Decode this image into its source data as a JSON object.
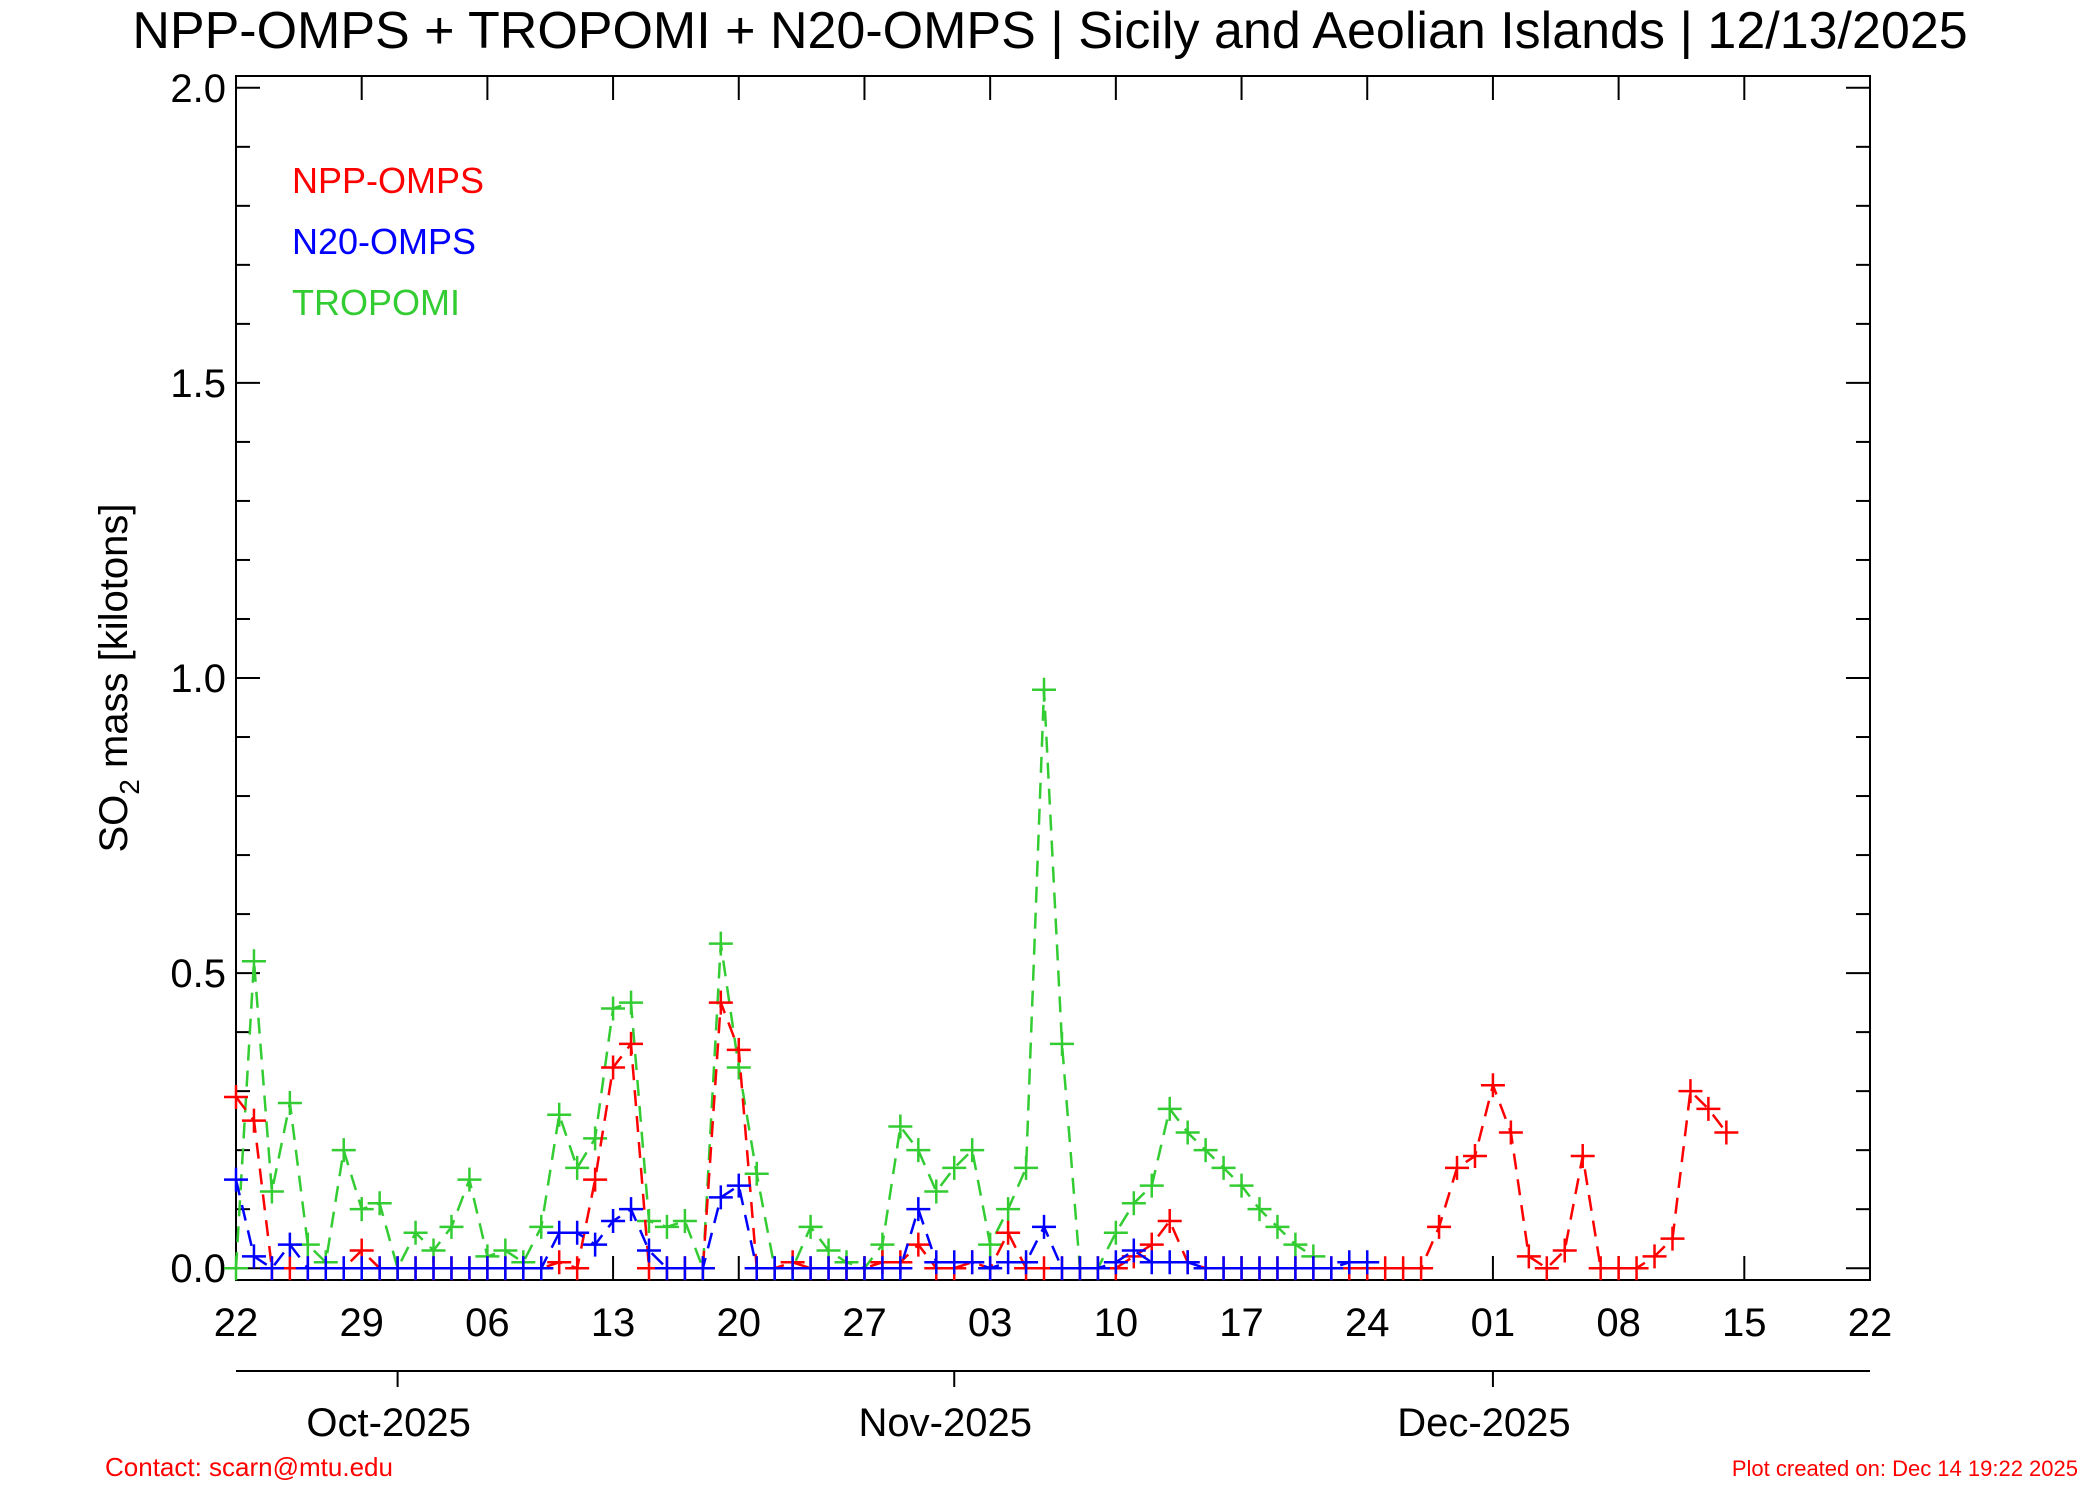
{
  "title": "NPP-OMPS + TROPOMI + N20-OMPS | Sicily and Aeolian Islands | 12/13/2025",
  "footer": {
    "contact": "Contact: scarn@mtu.edu",
    "created": "Plot created on: Dec 14 19:22 2025",
    "color": "#ff0000"
  },
  "chart_data": {
    "type": "line",
    "title": "NPP-OMPS + TROPOMI + N20-OMPS | Sicily and Aeolian Islands | 12/13/2025",
    "xlabel": "",
    "ylabel": "SO2 mass [kilotons]",
    "ylabel_main": "SO",
    "ylabel_sub": "2",
    "ylabel_rest": " mass [kilotons]",
    "x_unit": "days since Sep 22 2025",
    "xlim": [
      0,
      91
    ],
    "ylim": [
      -0.02,
      2.02
    ],
    "grid": false,
    "legend_placement": "top-left",
    "x_ticks": [
      {
        "x": 0,
        "label": "22"
      },
      {
        "x": 7,
        "label": "29"
      },
      {
        "x": 14,
        "label": "06"
      },
      {
        "x": 21,
        "label": "13"
      },
      {
        "x": 28,
        "label": "20"
      },
      {
        "x": 35,
        "label": "27"
      },
      {
        "x": 42,
        "label": "03"
      },
      {
        "x": 49,
        "label": "10"
      },
      {
        "x": 56,
        "label": "17"
      },
      {
        "x": 63,
        "label": "24"
      },
      {
        "x": 70,
        "label": "01"
      },
      {
        "x": 77,
        "label": "08"
      },
      {
        "x": 84,
        "label": "15"
      },
      {
        "x": 91,
        "label": "22"
      }
    ],
    "months": [
      {
        "x": 8.5,
        "label": "Oct-2025"
      },
      {
        "x": 39.5,
        "label": "Nov-2025"
      },
      {
        "x": 69.5,
        "label": "Dec-2025"
      }
    ],
    "y_ticks": [
      {
        "y": 0.0,
        "label": "0.0"
      },
      {
        "y": 0.5,
        "label": "0.5"
      },
      {
        "y": 1.0,
        "label": "1.0"
      },
      {
        "y": 1.5,
        "label": "1.5"
      },
      {
        "y": 2.0,
        "label": "2.0"
      }
    ],
    "series": [
      {
        "name": "NPP-OMPS",
        "color": "#ff0000",
        "x": [
          0,
          1,
          2,
          3,
          4,
          5,
          6,
          7,
          8,
          9,
          10,
          11,
          12,
          13,
          14,
          15,
          16,
          17,
          18,
          19,
          20,
          21,
          22,
          23,
          24,
          25,
          26,
          27,
          28,
          29,
          30,
          31,
          32,
          33,
          34,
          35,
          36,
          37,
          38,
          39,
          40,
          41,
          42,
          43,
          44,
          45,
          46,
          47,
          48,
          49,
          50,
          51,
          52,
          53,
          54,
          55,
          56,
          57,
          58,
          59,
          60,
          61,
          62,
          63,
          64,
          65,
          66,
          67,
          68,
          69,
          70,
          71,
          72,
          73,
          74,
          75,
          76,
          77,
          78,
          79,
          80,
          81,
          82,
          83
        ],
        "y": [
          0.29,
          0.25,
          0.0,
          0.0,
          0.0,
          0.0,
          0.0,
          0.03,
          0.0,
          0.0,
          0.0,
          0.0,
          0.0,
          0.0,
          0.0,
          0.0,
          0.0,
          0.0,
          0.01,
          0.0,
          0.15,
          0.34,
          0.38,
          0.0,
          0.0,
          0.0,
          0.0,
          0.45,
          0.37,
          0.0,
          0.0,
          0.01,
          0.0,
          0.0,
          0.0,
          0.0,
          0.01,
          0.01,
          0.04,
          0.0,
          0.0,
          0.01,
          0.0,
          0.06,
          0.0,
          0.0,
          0.0,
          0.0,
          0.0,
          0.0,
          0.02,
          0.04,
          0.08,
          0.01,
          0.0,
          0.0,
          0.0,
          0.0,
          0.0,
          0.0,
          0.0,
          0.0,
          0.0,
          0.0,
          0.0,
          0.0,
          0.0,
          0.07,
          0.17,
          0.19,
          0.31,
          0.23,
          0.02,
          0.0,
          0.03,
          0.19,
          0.0,
          0.0,
          0.0,
          0.02,
          0.05,
          0.3,
          0.27,
          0.23
        ]
      },
      {
        "name": "N20-OMPS",
        "color": "#0000ff",
        "x": [
          0,
          1,
          2,
          3,
          4,
          5,
          6,
          7,
          8,
          9,
          10,
          11,
          12,
          13,
          14,
          15,
          16,
          17,
          18,
          19,
          20,
          21,
          22,
          23,
          24,
          25,
          26,
          27,
          28,
          29,
          30,
          31,
          32,
          33,
          34,
          35,
          36,
          37,
          38,
          39,
          40,
          41,
          42,
          43,
          44,
          45,
          46,
          47,
          48,
          49,
          50,
          51,
          52,
          53,
          54,
          55,
          56,
          57,
          58,
          59,
          60,
          61,
          62,
          63
        ],
        "y": [
          0.15,
          0.02,
          0.0,
          0.04,
          0.0,
          0.0,
          0.0,
          0.0,
          0.0,
          0.0,
          0.0,
          0.0,
          0.0,
          0.0,
          0.0,
          0.0,
          0.0,
          0.0,
          0.06,
          0.06,
          0.04,
          0.08,
          0.1,
          0.03,
          0.0,
          0.0,
          0.0,
          0.12,
          0.14,
          0.0,
          0.0,
          0.0,
          0.0,
          0.0,
          0.0,
          0.0,
          0.0,
          0.0,
          0.1,
          0.01,
          0.01,
          0.01,
          0.0,
          0.01,
          0.01,
          0.07,
          0.0,
          0.0,
          0.0,
          0.01,
          0.03,
          0.01,
          0.01,
          0.01,
          0.0,
          0.0,
          0.0,
          0.0,
          0.0,
          0.0,
          0.0,
          0.0,
          0.01,
          0.01
        ]
      },
      {
        "name": "TROPOMI",
        "color": "#33cc33",
        "x": [
          0,
          1,
          2,
          3,
          4,
          5,
          6,
          7,
          8,
          9,
          10,
          11,
          12,
          13,
          14,
          15,
          16,
          17,
          18,
          19,
          20,
          21,
          22,
          23,
          24,
          25,
          26,
          27,
          28,
          29,
          30,
          31,
          32,
          33,
          34,
          35,
          36,
          37,
          38,
          39,
          40,
          41,
          42,
          43,
          44,
          45,
          46,
          47,
          48,
          49,
          50,
          51,
          52,
          53,
          54,
          55,
          56,
          57,
          58,
          59,
          60
        ],
        "y": [
          0.0,
          0.52,
          0.13,
          0.28,
          0.04,
          0.01,
          0.2,
          0.1,
          0.11,
          0.0,
          0.06,
          0.03,
          0.07,
          0.15,
          0.02,
          0.03,
          0.01,
          0.07,
          0.26,
          0.17,
          0.22,
          0.44,
          0.45,
          0.08,
          0.07,
          0.08,
          0.0,
          0.55,
          0.34,
          0.16,
          0.0,
          0.0,
          0.07,
          0.03,
          0.01,
          0.0,
          0.04,
          0.24,
          0.2,
          0.13,
          0.17,
          0.2,
          0.04,
          0.1,
          0.17,
          0.98,
          0.38,
          0.0,
          0.0,
          0.06,
          0.11,
          0.14,
          0.27,
          0.23,
          0.2,
          0.17,
          0.14,
          0.1,
          0.07,
          0.04,
          0.02
        ]
      }
    ]
  }
}
